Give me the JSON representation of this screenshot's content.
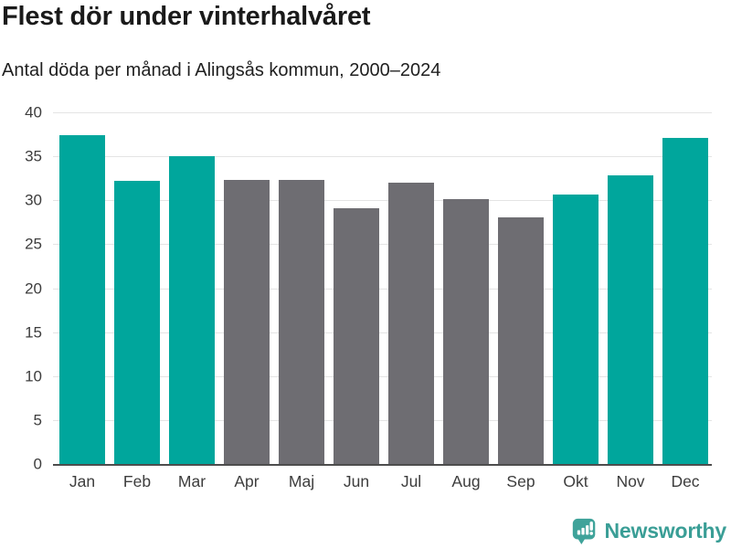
{
  "header": {
    "title": "Flest dör under vinterhalvåret",
    "subtitle": "Antal döda per månad i Alingsås kommun, 2000–2024"
  },
  "chart_data": {
    "type": "bar",
    "title": "Flest dör under vinterhalvåret",
    "subtitle": "Antal döda per månad i Alingsås kommun, 2000–2024",
    "categories": [
      "Jan",
      "Feb",
      "Mar",
      "Apr",
      "Maj",
      "Jun",
      "Jul",
      "Aug",
      "Sep",
      "Okt",
      "Nov",
      "Dec"
    ],
    "values": [
      37.4,
      32.2,
      35.0,
      32.3,
      32.3,
      29.1,
      32.0,
      30.1,
      28.1,
      30.7,
      32.8,
      37.1
    ],
    "highlighted": [
      true,
      true,
      true,
      false,
      false,
      false,
      false,
      false,
      false,
      true,
      true,
      true
    ],
    "colors": {
      "highlight": "#00a69c",
      "default": "#6e6d72"
    },
    "xlabel": "",
    "ylabel": "",
    "ylim": [
      0,
      40
    ],
    "yticks": [
      0,
      5,
      10,
      15,
      20,
      25,
      30,
      35,
      40
    ],
    "grid": "horizontal",
    "legend": "none"
  },
  "footer": {
    "brand": "Newsworthy",
    "logo_color": "#3fa39a"
  }
}
